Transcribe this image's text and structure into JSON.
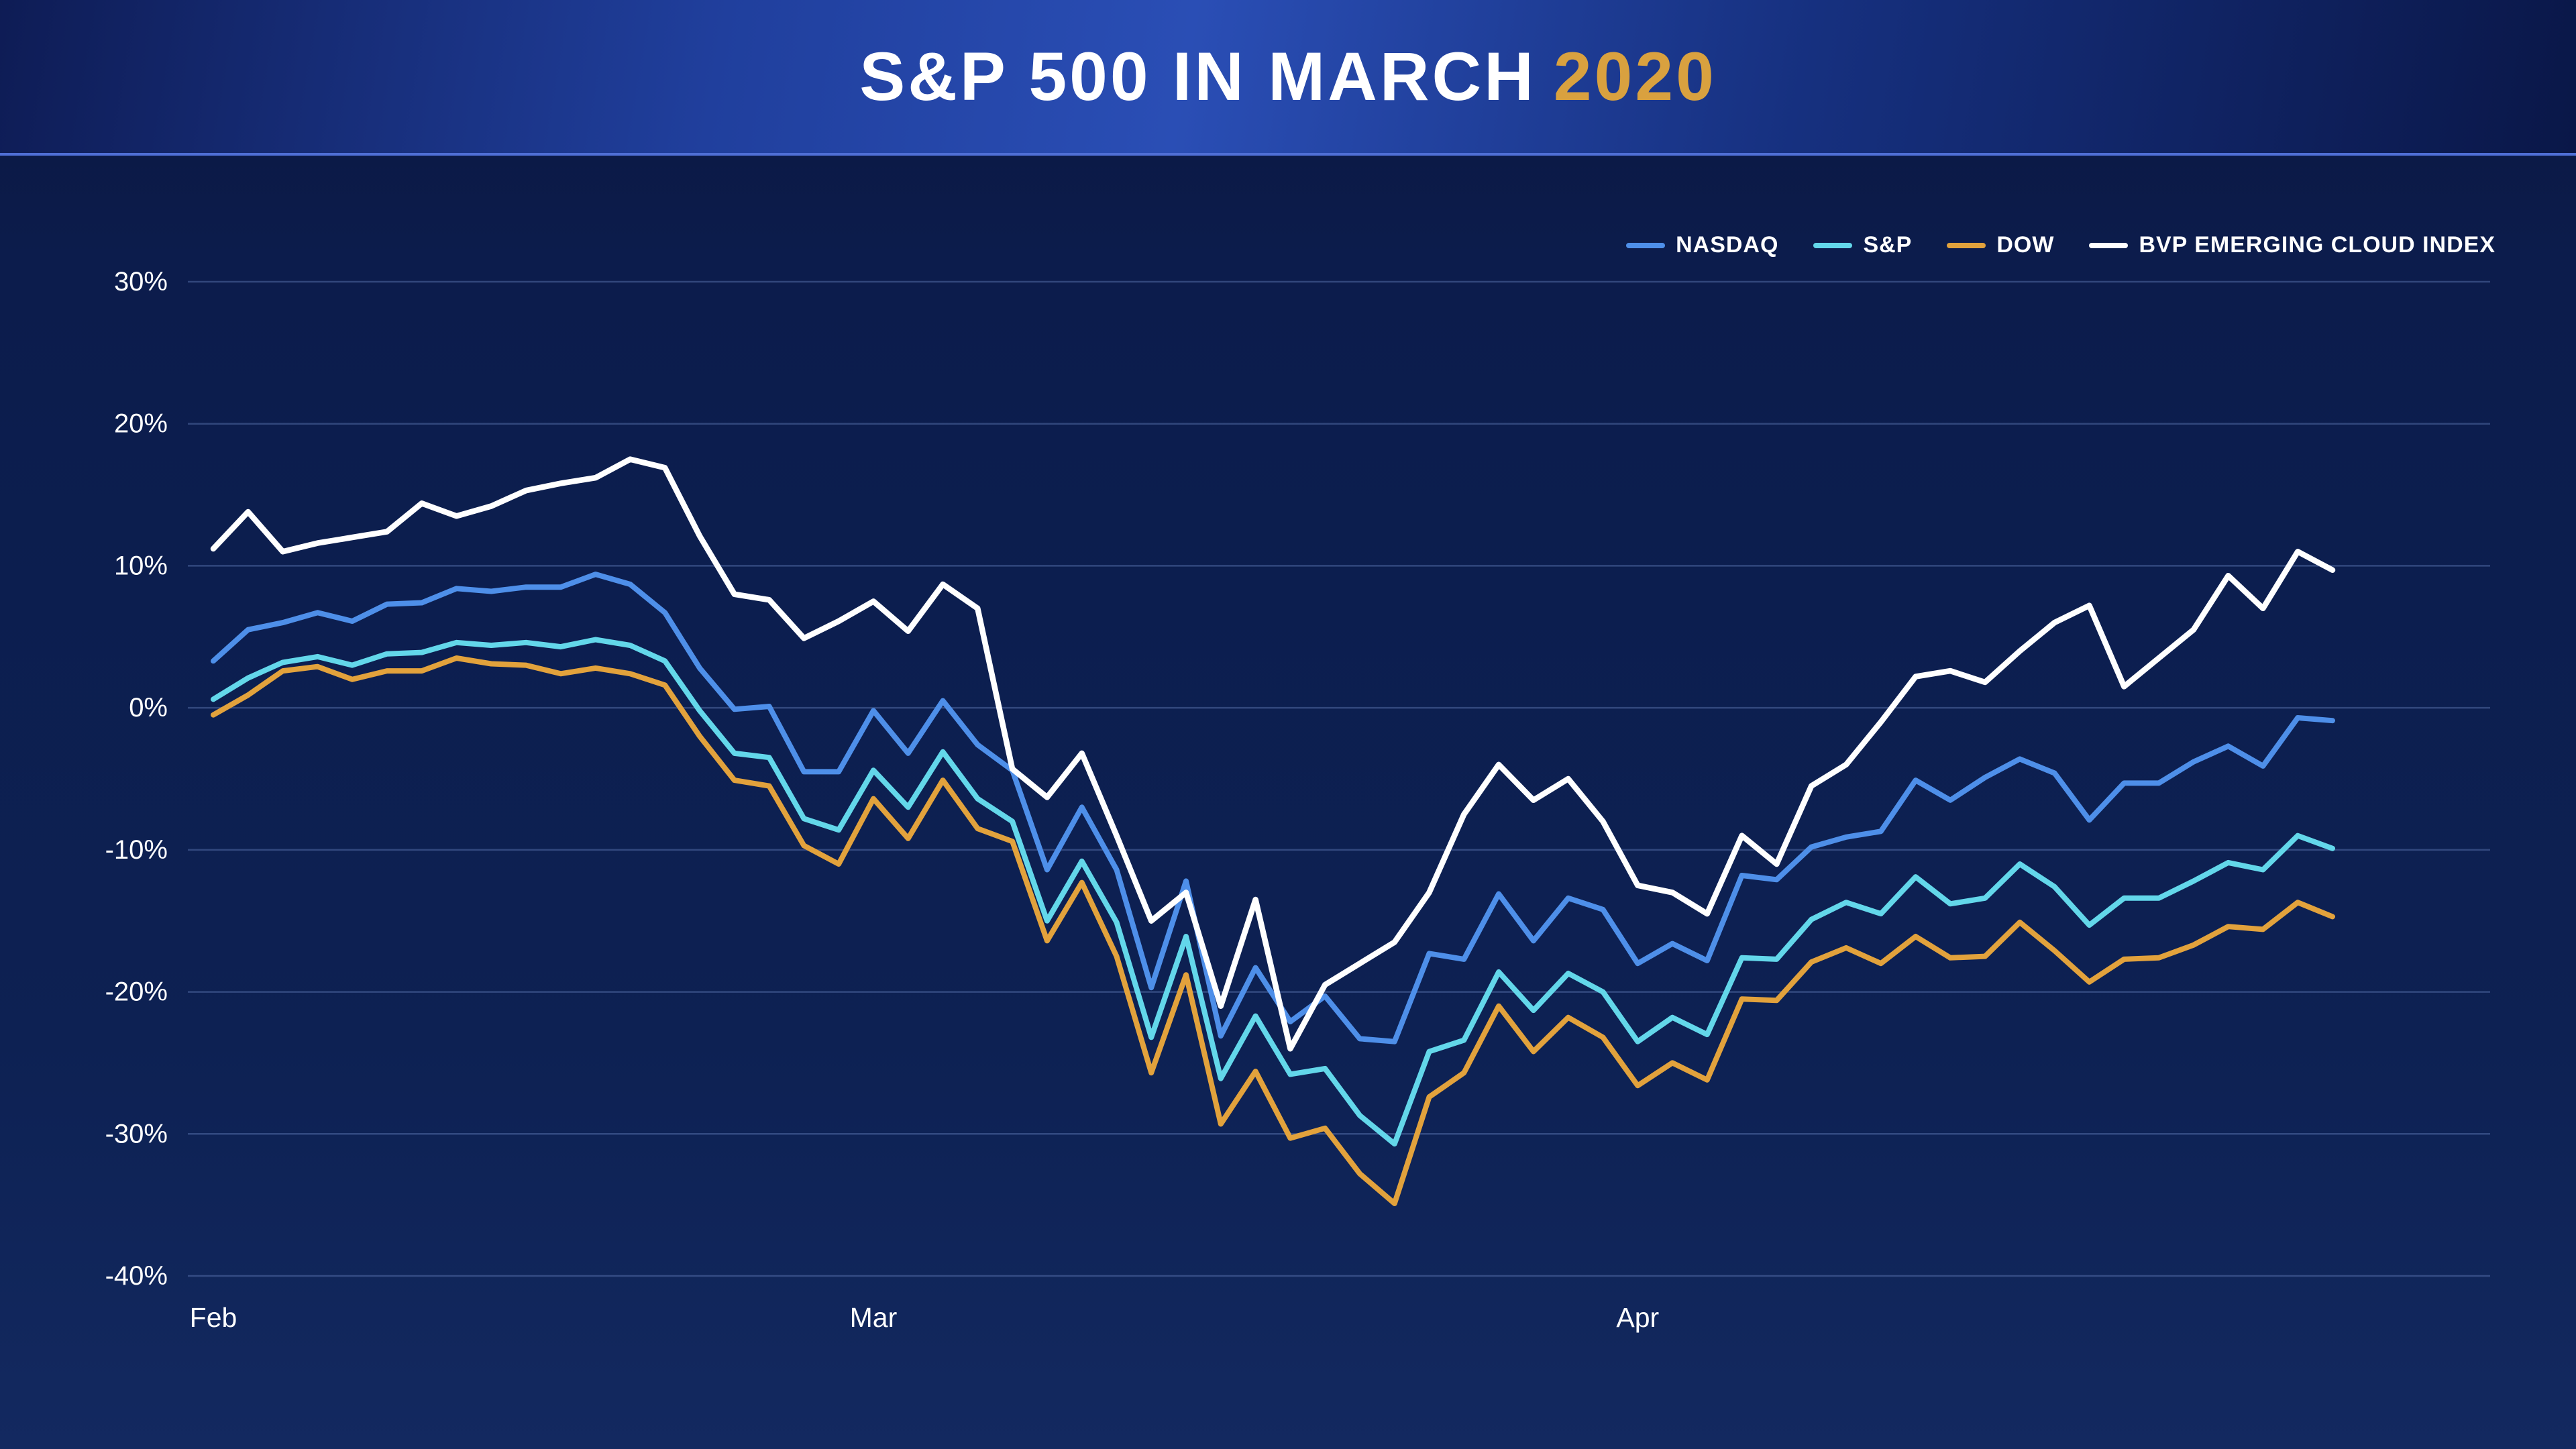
{
  "header": {
    "title_main": "S&P 500 IN MARCH",
    "title_year": "2020",
    "accent_color": "#d9a13f"
  },
  "legend": [
    {
      "label": "NASDAQ",
      "color": "#4e8fe9"
    },
    {
      "label": "S&P",
      "color": "#63d7ea"
    },
    {
      "label": "DOW",
      "color": "#e2a23c"
    },
    {
      "label": "BVP EMERGING CLOUD INDEX",
      "color": "#ffffff"
    }
  ],
  "chart_data": {
    "type": "line",
    "title": "S&P 500 IN MARCH 2020",
    "xlabel": "",
    "ylabel": "",
    "ylim": [
      -40,
      30
    ],
    "grid": true,
    "legend_position": "top-right",
    "background_color": "#0d2053",
    "gridline_color": "#6f8cc8",
    "y_ticks": [
      "30%",
      "20%",
      "10%",
      "0%",
      "-10%",
      "-20%",
      "-30%",
      "-40%"
    ],
    "x_axis_ticks": [
      "Feb",
      "Mar",
      "Apr"
    ],
    "x": [
      "Feb 3",
      "Feb 4",
      "Feb 5",
      "Feb 6",
      "Feb 7",
      "Feb 10",
      "Feb 11",
      "Feb 12",
      "Feb 13",
      "Feb 14",
      "Feb 18",
      "Feb 19",
      "Feb 20",
      "Feb 21",
      "Feb 24",
      "Feb 25",
      "Feb 26",
      "Feb 27",
      "Feb 28",
      "Mar 2",
      "Mar 3",
      "Mar 4",
      "Mar 5",
      "Mar 6",
      "Mar 9",
      "Mar 10",
      "Mar 11",
      "Mar 12",
      "Mar 13",
      "Mar 16",
      "Mar 17",
      "Mar 18",
      "Mar 19",
      "Mar 20",
      "Mar 23",
      "Mar 24",
      "Mar 25",
      "Mar 26",
      "Mar 27",
      "Mar 30",
      "Mar 31",
      "Apr 1",
      "Apr 2",
      "Apr 3",
      "Apr 6",
      "Apr 7",
      "Apr 8",
      "Apr 9",
      "Apr 13",
      "Apr 14",
      "Apr 15",
      "Apr 16",
      "Apr 17",
      "Apr 20",
      "Apr 21",
      "Apr 22",
      "Apr 23",
      "Apr 24",
      "Apr 27",
      "Apr 28",
      "Apr 29",
      "Apr 30"
    ],
    "series": [
      {
        "name": "DOW",
        "color": "#e2a23c",
        "values": [
          -0.5,
          0.9,
          2.6,
          2.9,
          2.0,
          2.6,
          2.6,
          3.5,
          3.1,
          3.0,
          2.4,
          2.8,
          2.4,
          1.6,
          -2.0,
          -5.1,
          -5.5,
          -9.7,
          -11.0,
          -6.4,
          -9.2,
          -5.1,
          -8.5,
          -9.4,
          -16.4,
          -12.3,
          -17.5,
          -25.7,
          -18.8,
          -29.3,
          -25.6,
          -30.3,
          -29.6,
          -32.8,
          -34.9,
          -27.4,
          -25.7,
          -21.0,
          -24.2,
          -21.8,
          -23.2,
          -26.6,
          -25.0,
          -26.2,
          -20.5,
          -20.6,
          -17.9,
          -16.9,
          -18.0,
          -16.1,
          -17.6,
          -17.5,
          -15.1,
          -17.1,
          -19.3,
          -17.7,
          -17.6,
          -16.7,
          -15.4,
          -15.6,
          -13.7,
          -14.7
        ]
      },
      {
        "name": "S&P",
        "color": "#63d7ea",
        "values": [
          0.6,
          2.1,
          3.2,
          3.6,
          3.0,
          3.8,
          3.9,
          4.6,
          4.4,
          4.6,
          4.3,
          4.8,
          4.4,
          3.3,
          -0.2,
          -3.2,
          -3.5,
          -7.8,
          -8.6,
          -4.4,
          -7.0,
          -3.1,
          -6.4,
          -8.0,
          -15.0,
          -10.8,
          -15.1,
          -23.2,
          -16.1,
          -26.1,
          -21.7,
          -25.8,
          -25.4,
          -28.7,
          -30.7,
          -24.2,
          -23.4,
          -18.6,
          -21.3,
          -18.7,
          -20.0,
          -23.5,
          -21.8,
          -23.0,
          -17.6,
          -17.7,
          -14.9,
          -13.7,
          -14.5,
          -11.9,
          -13.8,
          -13.4,
          -11.0,
          -12.6,
          -15.3,
          -13.4,
          -13.4,
          -12.2,
          -10.9,
          -11.4,
          -9.0,
          -9.9
        ]
      },
      {
        "name": "NASDAQ",
        "color": "#4e8fe9",
        "values": [
          3.3,
          5.5,
          6.0,
          6.7,
          6.1,
          7.3,
          7.4,
          8.4,
          8.2,
          8.5,
          8.5,
          9.4,
          8.7,
          6.7,
          2.8,
          -0.1,
          0.1,
          -4.5,
          -4.5,
          -0.2,
          -3.2,
          0.5,
          -2.6,
          -4.4,
          -11.4,
          -7.0,
          -11.4,
          -19.7,
          -12.2,
          -23.1,
          -18.3,
          -22.1,
          -20.3,
          -23.3,
          -23.5,
          -17.3,
          -17.7,
          -13.1,
          -16.4,
          -13.4,
          -14.2,
          -18.0,
          -16.6,
          -17.8,
          -11.8,
          -12.1,
          -9.8,
          -9.1,
          -8.7,
          -5.1,
          -6.5,
          -4.9,
          -3.6,
          -4.6,
          -7.9,
          -5.3,
          -5.3,
          -3.8,
          -2.7,
          -4.1,
          -0.7,
          -0.9
        ]
      },
      {
        "name": "BVP EMERGING CLOUD INDEX",
        "color": "#ffffff",
        "values": [
          11.2,
          13.8,
          11.0,
          11.6,
          12.0,
          12.4,
          14.4,
          13.5,
          14.2,
          15.3,
          15.8,
          16.2,
          17.5,
          16.9,
          12.1,
          8.0,
          7.6,
          4.9,
          6.1,
          7.5,
          5.4,
          8.7,
          7.0,
          -4.3,
          -6.3,
          -3.2,
          -9.0,
          -15.0,
          -13.0,
          -21.0,
          -13.5,
          -24.0,
          -19.5,
          -18.0,
          -16.5,
          -13.0,
          -7.5,
          -4.0,
          -6.5,
          -5.0,
          -8.0,
          -12.5,
          -13.0,
          -14.5,
          -9.0,
          -11.0,
          -5.5,
          -4.0,
          -1.0,
          2.2,
          2.6,
          1.8,
          4.0,
          6.0,
          7.2,
          1.5,
          3.5,
          5.5,
          9.3,
          7.0,
          11.0,
          9.7
        ]
      }
    ]
  }
}
